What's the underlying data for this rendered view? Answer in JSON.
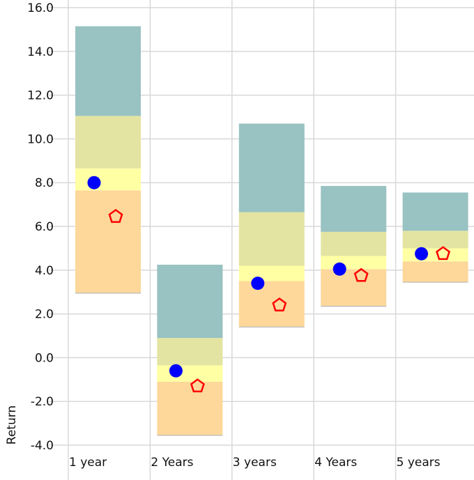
{
  "chart_data": {
    "type": "floating-bar",
    "title": "",
    "xlabel": "",
    "ylabel": "Return",
    "ylim": [
      -4.0,
      16.0
    ],
    "yticks": [
      "16.0",
      "14.0",
      "12.0",
      "10.0",
      "8.0",
      "6.0",
      "4.0",
      "2.0",
      "0.0",
      "-2.0",
      "-4.0"
    ],
    "categories": [
      "1 year",
      "2 Years",
      "3 years",
      "4 Years",
      "5 years"
    ],
    "band_colors": [
      "#fdd89a",
      "#ffffa4",
      "#e4e4a2",
      "#99c2c2"
    ],
    "bands": [
      [
        2.95,
        7.65,
        8.65,
        11.05,
        15.15
      ],
      [
        -3.55,
        -1.1,
        -0.35,
        0.9,
        4.25
      ],
      [
        1.4,
        3.5,
        4.2,
        6.65,
        10.7
      ],
      [
        2.35,
        4.05,
        4.65,
        5.75,
        7.85
      ],
      [
        3.45,
        4.4,
        5.0,
        5.8,
        7.55
      ]
    ],
    "series": [
      {
        "marker": "circle",
        "color": "#0000ff",
        "values": [
          8.0,
          -0.6,
          3.4,
          4.05,
          4.75
        ]
      },
      {
        "marker": "pentagon",
        "color": "#ff0000",
        "values": [
          6.45,
          -1.3,
          2.4,
          3.75,
          4.75
        ]
      }
    ],
    "grid": true
  }
}
